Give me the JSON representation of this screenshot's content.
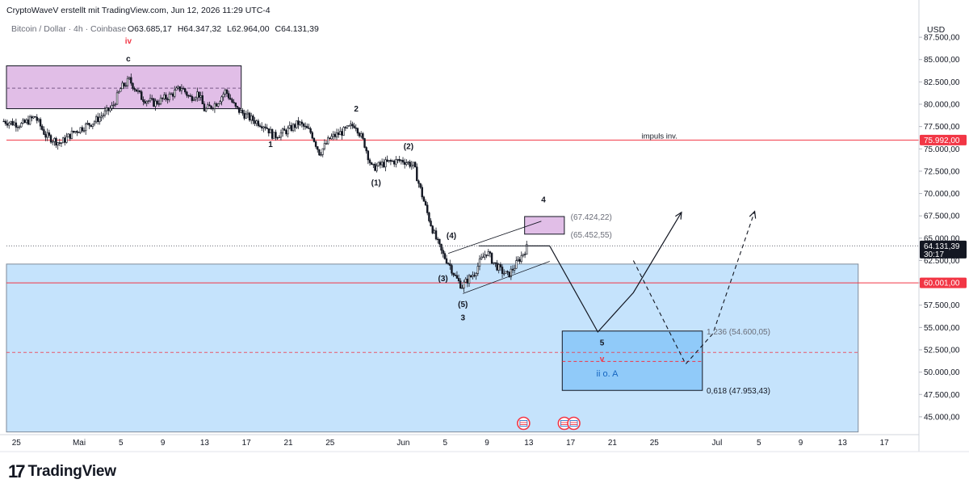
{
  "header": {
    "attribution": "CryptoWaveV erstellt mit TradingView.com, Jun 12, 2026 11:29 UTC-4"
  },
  "legend": {
    "symbol": "Bitcoin / Dollar · 4h · Coinbase",
    "o_label": "O",
    "o_value": "63.685,17",
    "h_label": "H",
    "h_value": "64.347,32",
    "l_label": "L",
    "l_value": "62.964,00",
    "c_label": "C",
    "c_value": "64.131,39"
  },
  "footer": {
    "brand": "TradingView"
  },
  "colors": {
    "up": "#131722",
    "down": "#131722",
    "accent_red": "#f23645",
    "zone_blue": "#bbdefb",
    "target_blue": "#90caf9",
    "zone_purple": "#e1bee7"
  },
  "chart_data": {
    "type": "candlestick",
    "currency": "USD",
    "y_unit": "USD",
    "ylim": [
      43000,
      89500
    ],
    "y_ticks": [
      45000,
      47500,
      50000,
      52500,
      55000,
      57500,
      60000,
      62500,
      65000,
      67500,
      70000,
      72500,
      75000,
      77500,
      80000,
      82500,
      85000,
      87500
    ],
    "y_tick_labels": [
      "45.000,00",
      "47.500,00",
      "50.000,00",
      "52.500,00",
      "55.000,00",
      "57.500,00",
      "60.000,00",
      "62.500,00",
      "65.000,00",
      "67.500,00",
      "70.000,00",
      "72.500,00",
      "75.000,00",
      "77.500,00",
      "80.000,00",
      "82.500,00",
      "85.000,00",
      "87.500,00"
    ],
    "x_unit": "day",
    "x_ticks": [
      {
        "day": -6,
        "label": "25"
      },
      {
        "day": 0,
        "label": "Mai"
      },
      {
        "day": 4,
        "label": "5"
      },
      {
        "day": 8,
        "label": "9"
      },
      {
        "day": 12,
        "label": "13"
      },
      {
        "day": 16,
        "label": "17"
      },
      {
        "day": 20,
        "label": "21"
      },
      {
        "day": 24,
        "label": "25"
      },
      {
        "day": 31,
        "label": "Jun"
      },
      {
        "day": 35,
        "label": "5"
      },
      {
        "day": 39,
        "label": "9"
      },
      {
        "day": 43,
        "label": "13"
      },
      {
        "day": 47,
        "label": "17"
      },
      {
        "day": 51,
        "label": "21"
      },
      {
        "day": 55,
        "label": "25"
      },
      {
        "day": 61,
        "label": "Jul"
      },
      {
        "day": 65,
        "label": "5"
      },
      {
        "day": 69,
        "label": "9"
      },
      {
        "day": 73,
        "label": "13"
      },
      {
        "day": 77,
        "label": "17"
      }
    ],
    "price_path": [
      [
        -7.2,
        78100
      ],
      [
        -5.5,
        77700
      ],
      [
        -4.2,
        78600
      ],
      [
        -3.2,
        76500
      ],
      [
        -1.8,
        75600
      ],
      [
        -0.5,
        76900
      ],
      [
        1.5,
        78100
      ],
      [
        3.2,
        79700
      ],
      [
        4.0,
        81800
      ],
      [
        4.8,
        82700
      ],
      [
        6.0,
        80700
      ],
      [
        7.2,
        80100
      ],
      [
        8.6,
        80900
      ],
      [
        9.8,
        81900
      ],
      [
        10.6,
        80700
      ],
      [
        11.4,
        81300
      ],
      [
        12.0,
        79300
      ],
      [
        13.2,
        80200
      ],
      [
        14.0,
        81500
      ],
      [
        15.0,
        79500
      ],
      [
        16.5,
        78300
      ],
      [
        17.8,
        77600
      ],
      [
        18.6,
        76400
      ],
      [
        20.0,
        77100
      ],
      [
        21.0,
        77900
      ],
      [
        22.2,
        76800
      ],
      [
        23.0,
        74500
      ],
      [
        24.0,
        76200
      ],
      [
        25.5,
        77100
      ],
      [
        26.4,
        77800
      ],
      [
        27.3,
        75500
      ],
      [
        28.0,
        72800
      ],
      [
        29.0,
        73300
      ],
      [
        30.0,
        73600
      ],
      [
        31.0,
        73700
      ],
      [
        32.0,
        73100
      ],
      [
        32.6,
        70600
      ],
      [
        33.4,
        67400
      ],
      [
        34.0,
        65300
      ],
      [
        34.7,
        63300
      ],
      [
        35.4,
        62100
      ],
      [
        36.0,
        60600
      ],
      [
        36.6,
        59600
      ],
      [
        37.2,
        60400
      ],
      [
        37.8,
        61100
      ],
      [
        38.4,
        62500
      ],
      [
        39.0,
        63500
      ],
      [
        39.6,
        62300
      ],
      [
        40.3,
        61400
      ],
      [
        41.0,
        60800
      ],
      [
        41.8,
        62100
      ],
      [
        42.4,
        63200
      ],
      [
        42.9,
        64131
      ]
    ],
    "last_price": 64131.39,
    "last_price_label": "64.131,39",
    "countdown": "30:17",
    "levels": [
      {
        "price": 75992,
        "label": "75.992,00",
        "text": "impuls inv.",
        "color": "#f23645"
      },
      {
        "price": 60001,
        "label": "60.001,00",
        "color": "#f23645"
      }
    ],
    "zones": [
      {
        "kind": "demand",
        "x0": -7.5,
        "x1": 74.5,
        "y0": 43300,
        "y1": 62100,
        "color": "#bbdefb"
      },
      {
        "kind": "supply",
        "x0": -7.5,
        "x1": 15.5,
        "y0": 79500,
        "y1": 84300,
        "color": "#e1bee7",
        "mid": 81800
      },
      {
        "kind": "target-4",
        "x0": 42.6,
        "x1": 46.4,
        "y0": 65452.55,
        "y1": 67424.22,
        "color": "#e1bee7"
      },
      {
        "kind": "target-5",
        "x0": 46.2,
        "x1": 59.6,
        "y0": 47953.43,
        "y1": 54600.05,
        "color": "#90caf9",
        "mid": 51200,
        "mid_line": 52200
      }
    ],
    "fib_labels": [
      {
        "text": "(67.424,22)",
        "price": 67424.22,
        "day": 47.0
      },
      {
        "text": "(65.452,55)",
        "price": 65452.55,
        "day": 47.0
      },
      {
        "text": "1,236 (54.600,05)",
        "price": 54600.05,
        "day": 60.0
      },
      {
        "text": "0,618 (47.953,43)",
        "price": 47953.43,
        "day": 60.0
      }
    ],
    "wave_labels": [
      {
        "text": "iv",
        "day": 4.7,
        "price": 86800,
        "color": "#f23645"
      },
      {
        "text": "c",
        "day": 4.7,
        "price": 84800,
        "color": "#131722"
      },
      {
        "text": "1",
        "day": 18.3,
        "price": 75200,
        "color": "#131722"
      },
      {
        "text": "2",
        "day": 26.5,
        "price": 79200,
        "color": "#131722"
      },
      {
        "text": "(2)",
        "day": 31.5,
        "price": 75000,
        "color": "#131722"
      },
      {
        "text": "(1)",
        "day": 28.4,
        "price": 70900,
        "color": "#131722"
      },
      {
        "text": "(4)",
        "day": 35.6,
        "price": 65000,
        "color": "#131722"
      },
      {
        "text": "(3)",
        "day": 34.8,
        "price": 60200,
        "color": "#131722"
      },
      {
        "text": "(5)",
        "day": 36.7,
        "price": 57300,
        "color": "#131722"
      },
      {
        "text": "3",
        "day": 36.7,
        "price": 55800,
        "color": "#131722"
      },
      {
        "text": "4",
        "day": 44.4,
        "price": 69000,
        "color": "#131722"
      },
      {
        "text": "5",
        "day": 50.0,
        "price": 53000,
        "color": "#131722"
      },
      {
        "text": "v",
        "day": 50.0,
        "price": 51200,
        "color": "#f23645"
      },
      {
        "text": "ii o. A",
        "day": 50.5,
        "price": 49500,
        "color": "#1565c0"
      }
    ],
    "channel": [
      {
        "from": [
          35.3,
          63300
        ],
        "to": [
          44.2,
          66900
        ]
      },
      {
        "from": [
          36.7,
          58800
        ],
        "to": [
          45.0,
          62400
        ]
      }
    ],
    "primary_path": [
      [
        42.9,
        64131
      ],
      [
        45.0,
        64131
      ],
      [
        49.6,
        54500
      ],
      [
        53.0,
        58900
      ],
      [
        57.6,
        67900
      ]
    ],
    "alternate_path": [
      [
        53.0,
        62500
      ],
      [
        58.0,
        50900
      ],
      [
        60.6,
        54300
      ],
      [
        64.6,
        68000
      ]
    ],
    "events": [
      {
        "day": 42.5
      },
      {
        "day": 46.4
      },
      {
        "day": 47.3
      }
    ]
  }
}
